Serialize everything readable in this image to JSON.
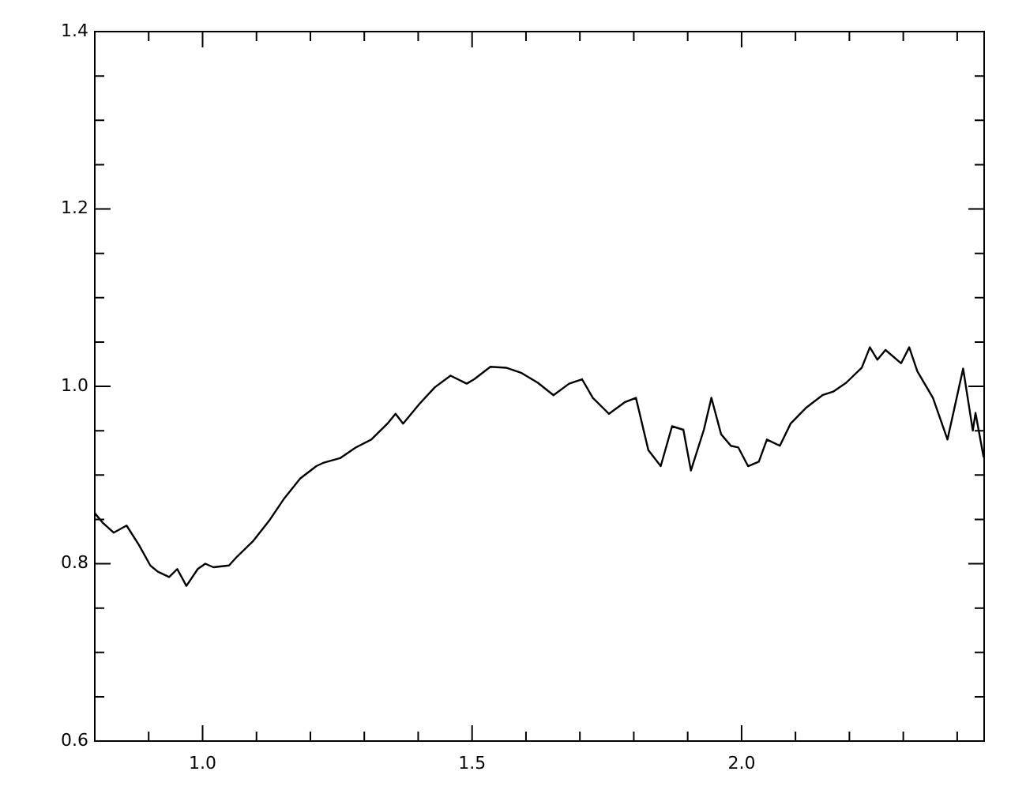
{
  "chart_data": {
    "type": "line",
    "color": "#000000",
    "x": [
      0.8,
      0.815,
      0.835,
      0.859,
      0.882,
      0.903,
      0.917,
      0.938,
      0.953,
      0.97,
      0.991,
      1.005,
      1.02,
      1.049,
      1.064,
      1.093,
      1.123,
      1.152,
      1.181,
      1.211,
      1.225,
      1.255,
      1.284,
      1.313,
      1.343,
      1.358,
      1.372,
      1.402,
      1.431,
      1.46,
      1.49,
      1.504,
      1.534,
      1.563,
      1.592,
      1.622,
      1.651,
      1.68,
      1.704,
      1.724,
      1.754,
      1.783,
      1.804,
      1.827,
      1.85,
      1.871,
      1.892,
      1.906,
      1.93,
      1.944,
      1.962,
      1.98,
      1.994,
      2.012,
      2.032,
      2.047,
      2.071,
      2.091,
      2.12,
      2.15,
      2.17,
      2.194,
      2.223,
      2.238,
      2.252,
      2.267,
      2.296,
      2.311,
      2.326,
      2.355,
      2.382,
      2.411,
      2.429,
      2.434,
      2.449
    ],
    "values": [
      0.857,
      0.846,
      0.835,
      0.843,
      0.821,
      0.798,
      0.791,
      0.785,
      0.794,
      0.775,
      0.794,
      0.8,
      0.796,
      0.798,
      0.808,
      0.825,
      0.848,
      0.874,
      0.896,
      0.91,
      0.914,
      0.919,
      0.931,
      0.94,
      0.958,
      0.969,
      0.958,
      0.98,
      0.999,
      1.012,
      1.003,
      1.008,
      1.022,
      1.021,
      1.015,
      1.004,
      0.99,
      1.003,
      1.008,
      0.987,
      0.969,
      0.982,
      0.987,
      0.928,
      0.91,
      0.955,
      0.951,
      0.905,
      0.951,
      0.987,
      0.946,
      0.933,
      0.931,
      0.91,
      0.915,
      0.94,
      0.933,
      0.958,
      0.976,
      0.99,
      0.994,
      1.004,
      1.021,
      1.044,
      1.03,
      1.041,
      1.026,
      1.044,
      1.017,
      0.987,
      0.94,
      1.02,
      0.95,
      0.97,
      0.92
    ],
    "xlim": [
      0.8,
      2.45
    ],
    "xticks": [
      {
        "value": 0.9,
        "label": null
      },
      {
        "value": 1.0,
        "label": "1.0"
      },
      {
        "value": 1.1,
        "label": null
      },
      {
        "value": 1.2,
        "label": null
      },
      {
        "value": 1.3,
        "label": null
      },
      {
        "value": 1.4,
        "label": null
      },
      {
        "value": 1.5,
        "label": "1.5"
      },
      {
        "value": 1.6,
        "label": null
      },
      {
        "value": 1.7,
        "label": null
      },
      {
        "value": 1.8,
        "label": null
      },
      {
        "value": 1.9,
        "label": null
      },
      {
        "value": 2.0,
        "label": "2.0"
      },
      {
        "value": 2.1,
        "label": null
      },
      {
        "value": 2.2,
        "label": null
      },
      {
        "value": 2.3,
        "label": null
      },
      {
        "value": 2.4,
        "label": null
      }
    ],
    "ylim": [
      0.6,
      1.4
    ],
    "yticks": [
      {
        "value": 0.6,
        "label": "0.6"
      },
      {
        "value": 0.65,
        "label": null
      },
      {
        "value": 0.7,
        "label": null
      },
      {
        "value": 0.75,
        "label": null
      },
      {
        "value": 0.8,
        "label": "0.8"
      },
      {
        "value": 0.85,
        "label": null
      },
      {
        "value": 0.9,
        "label": null
      },
      {
        "value": 0.95,
        "label": null
      },
      {
        "value": 1.0,
        "label": "1.0"
      },
      {
        "value": 1.05,
        "label": null
      },
      {
        "value": 1.1,
        "label": null
      },
      {
        "value": 1.15,
        "label": null
      },
      {
        "value": 1.2,
        "label": "1.2"
      },
      {
        "value": 1.25,
        "label": null
      },
      {
        "value": 1.3,
        "label": null
      },
      {
        "value": 1.35,
        "label": null
      },
      {
        "value": 1.4,
        "label": "1.4"
      }
    ],
    "marker": "none",
    "line_style": "solid",
    "grid": false,
    "legend": false
  }
}
